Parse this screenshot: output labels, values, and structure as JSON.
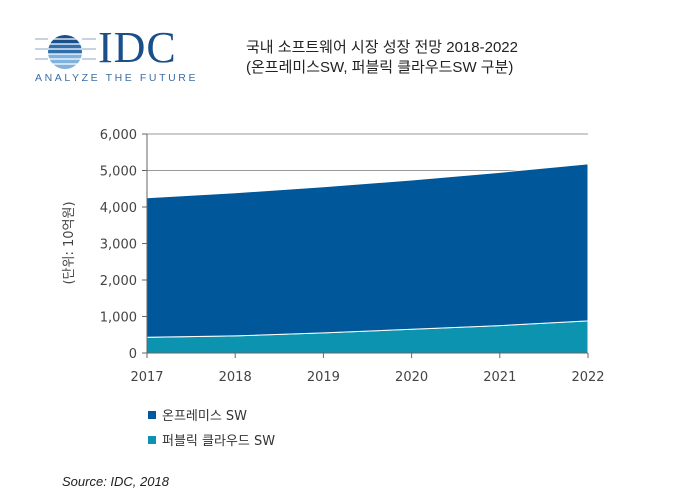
{
  "logo": {
    "name": "IDC",
    "tagline": "ANALYZE THE FUTURE"
  },
  "title": {
    "line1": "국내 소프트웨어 시장 성장 전망 2018-2022",
    "line2": "(온프레미스SW, 퍼블릭 클라우드SW 구분)"
  },
  "chart_data": {
    "type": "area",
    "stacked": true,
    "title": "국내 소프트웨어 시장 성장 전망 2018-2022",
    "xlabel": "",
    "ylabel": "(단위: 10억원)",
    "x": [
      "2017",
      "2018",
      "2019",
      "2020",
      "2021",
      "2022"
    ],
    "ylim": [
      0,
      6000
    ],
    "yticks": [
      "0",
      "1,000",
      "2,000",
      "3,000",
      "4,000",
      "5,000",
      "6,000"
    ],
    "ytick_values": [
      0,
      1000,
      2000,
      3000,
      4000,
      5000,
      6000
    ],
    "grid": true,
    "legend_position": "bottom-left",
    "series": [
      {
        "name": "퍼블릭 클라우드 SW",
        "color": "#0b93b0",
        "values": [
          430,
          470,
          550,
          650,
          750,
          880
        ]
      },
      {
        "name": "온프레미스 SW",
        "color": "#00579a",
        "values": [
          3825,
          3920,
          4005,
          4090,
          4200,
          4300
        ]
      }
    ]
  },
  "source": "Source: IDC, 2018"
}
